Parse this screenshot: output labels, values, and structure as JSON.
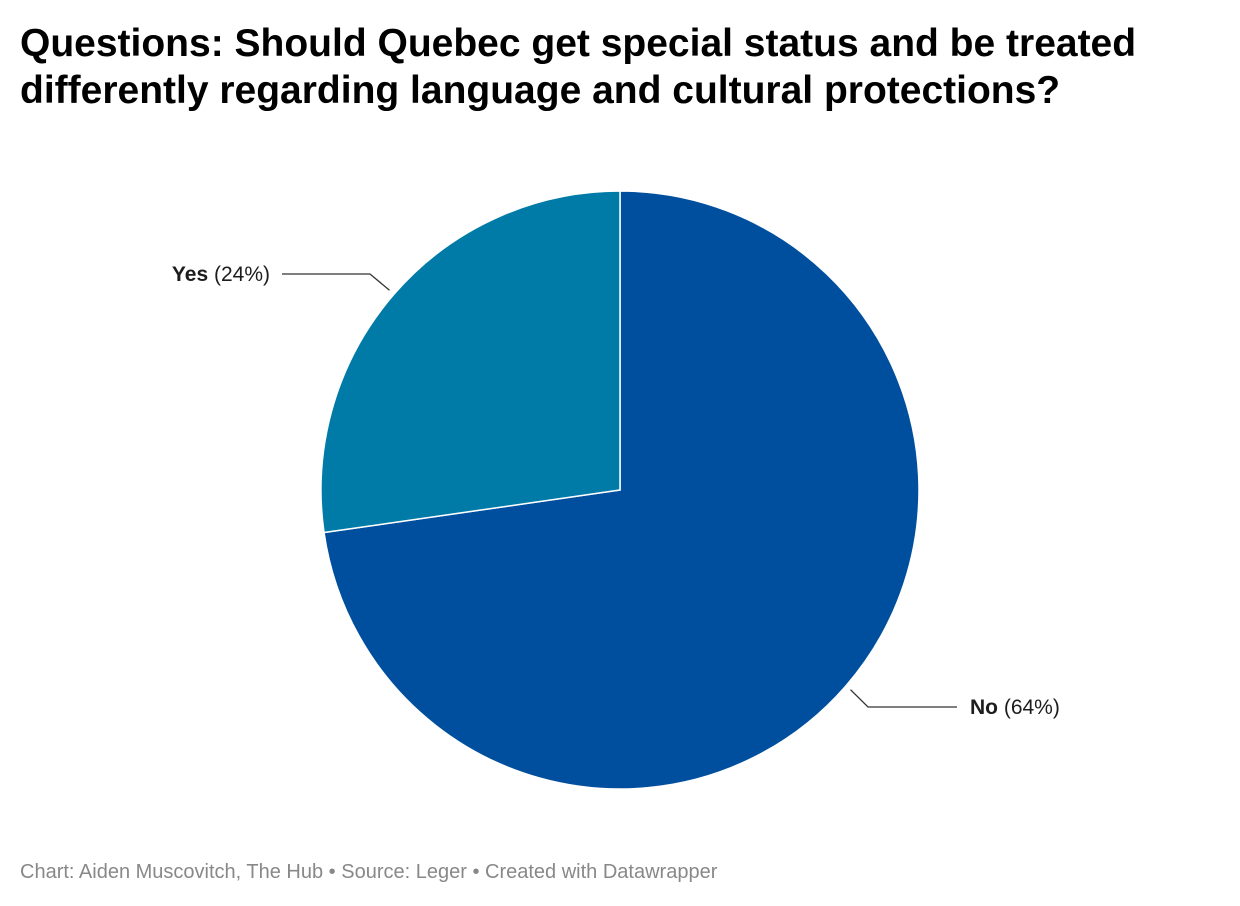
{
  "title": "Questions: Should Quebec get special status and be treated differently regarding language and cultural protections?",
  "chart_data": {
    "type": "pie",
    "categories": [
      "No",
      "Yes"
    ],
    "values": [
      64,
      24
    ],
    "labels": [
      "(64%)",
      "(24%)"
    ],
    "colors": [
      "#004f9e",
      "#007ba8"
    ],
    "start_angle_deg": 0,
    "direction": "clockwise",
    "label_line_color": "#333333",
    "slice_border_color": "#ffffff"
  },
  "footer": {
    "credit": "Chart: Aiden Muscovitch, The Hub",
    "separator1": " • ",
    "source": "Source: Leger",
    "separator2": " • ",
    "tool": "Created with Datawrapper"
  }
}
